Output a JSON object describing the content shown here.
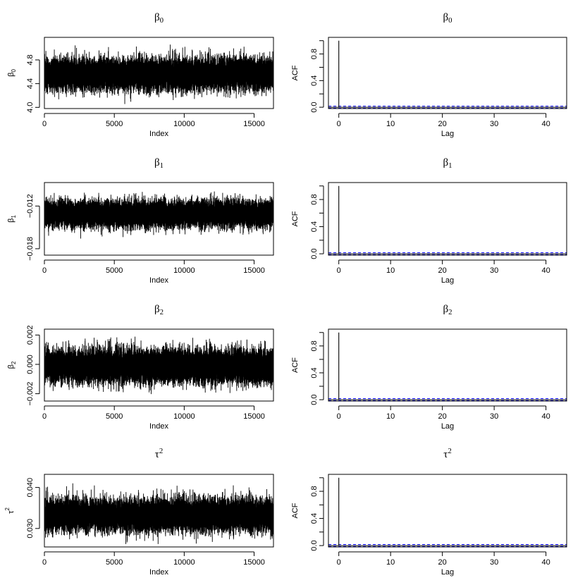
{
  "chart_data": [
    {
      "type": "line",
      "panel": "trace",
      "title": "β0",
      "title_base": "β",
      "title_sub": "0",
      "xlabel": "Index",
      "ylabel_base": "β",
      "ylabel_sub": "0",
      "xlim": [
        0,
        16384
      ],
      "ylim": [
        3.98,
        5.18
      ],
      "xticks": [
        0,
        5000,
        10000,
        15000
      ],
      "yticks": [
        4.0,
        4.4,
        4.8
      ],
      "ytick_labels": [
        "4.0",
        "4.4",
        "4.8"
      ],
      "series": [
        {
          "center": 4.56,
          "sd": 0.13,
          "min": 3.98,
          "max": 5.15,
          "n_samples": 16384,
          "color": "#000000"
        }
      ]
    },
    {
      "type": "bar",
      "panel": "acf",
      "title": "β0",
      "title_base": "β",
      "title_sub": "0",
      "xlabel": "Lag",
      "ylabel": "ACF",
      "xlim": [
        -2,
        44
      ],
      "ylim": [
        -0.02,
        1.05
      ],
      "xticks": [
        0,
        10,
        20,
        30,
        40
      ],
      "yticks": [
        0.0,
        0.2,
        0.4,
        0.6,
        0.8,
        1.0
      ],
      "ytick_labels": [
        "0.0",
        "",
        "0.4",
        "",
        "0.8",
        ""
      ],
      "lags": [
        0,
        1,
        2,
        3,
        4,
        5,
        6,
        7,
        8,
        9,
        10,
        11,
        12,
        13,
        14,
        15,
        16,
        17,
        18,
        19,
        20,
        21,
        22,
        23,
        24,
        25,
        26,
        27,
        28,
        29,
        30,
        31,
        32,
        33,
        34,
        35,
        36,
        37,
        38,
        39,
        40,
        41,
        42,
        43
      ],
      "values": [
        1.0,
        0.003,
        -0.002,
        0.004,
        -0.003,
        0.002,
        -0.004,
        0.003,
        0.001,
        -0.002,
        0.003,
        -0.001,
        0.002,
        -0.003,
        0.004,
        -0.002,
        0.001,
        0.003,
        -0.004,
        0.002,
        -0.001,
        0.003,
        -0.002,
        0.001,
        0.004,
        -0.003,
        0.002,
        -0.001,
        0.003,
        -0.002,
        0.001,
        -0.003,
        0.002,
        0.004,
        -0.002,
        0.001,
        -0.003,
        0.002,
        -0.001,
        0.003,
        -0.002,
        0.001,
        0.002,
        -0.003
      ],
      "conf_bound": 0.0153,
      "conf_color": "#0000ff"
    },
    {
      "type": "line",
      "panel": "trace",
      "title": "β1",
      "title_base": "β",
      "title_sub": "1",
      "xlabel": "Index",
      "ylabel_base": "β",
      "ylabel_sub": "1",
      "xlim": [
        0,
        16384
      ],
      "ylim": [
        -0.0189,
        -0.0087
      ],
      "xticks": [
        0,
        5000,
        10000,
        15000
      ],
      "yticks": [
        -0.018,
        -0.012
      ],
      "ytick_labels": [
        "−0.018",
        "−0.012"
      ],
      "series": [
        {
          "center": -0.0131,
          "sd": 0.0009,
          "min": -0.0183,
          "max": -0.0089,
          "n_samples": 16384,
          "color": "#000000"
        }
      ]
    },
    {
      "type": "bar",
      "panel": "acf",
      "title": "β1",
      "title_base": "β",
      "title_sub": "1",
      "xlabel": "Lag",
      "ylabel": "ACF",
      "xlim": [
        -2,
        44
      ],
      "ylim": [
        -0.02,
        1.05
      ],
      "xticks": [
        0,
        10,
        20,
        30,
        40
      ],
      "yticks": [
        0.0,
        0.2,
        0.4,
        0.6,
        0.8,
        1.0
      ],
      "ytick_labels": [
        "0.0",
        "",
        "0.4",
        "",
        "0.8",
        ""
      ],
      "lags": [
        0,
        1,
        2,
        3,
        4,
        5,
        6,
        7,
        8,
        9,
        10,
        11,
        12,
        13,
        14,
        15,
        16,
        17,
        18,
        19,
        20,
        21,
        22,
        23,
        24,
        25,
        26,
        27,
        28,
        29,
        30,
        31,
        32,
        33,
        34,
        35,
        36,
        37,
        38,
        39,
        40,
        41,
        42,
        43
      ],
      "values": [
        1.0,
        -0.002,
        0.003,
        0.001,
        -0.004,
        0.002,
        0.003,
        -0.001,
        -0.003,
        0.002,
        0.001,
        -0.002,
        0.004,
        -0.001,
        0.002,
        0.003,
        -0.003,
        0.001,
        0.002,
        -0.002,
        0.003,
        0.001,
        -0.004,
        0.002,
        -0.001,
        0.003,
        0.002,
        -0.002,
        0.001,
        -0.003,
        0.004,
        0.002,
        -0.001,
        -0.002,
        0.003,
        0.001,
        0.002,
        -0.003,
        0.001,
        0.002,
        -0.001,
        0.003,
        -0.002,
        0.001
      ],
      "conf_bound": 0.0153,
      "conf_color": "#0000ff"
    },
    {
      "type": "line",
      "panel": "trace",
      "title": "β2",
      "title_base": "β",
      "title_sub": "2",
      "xlabel": "Index",
      "ylabel_base": "β",
      "ylabel_sub": "2",
      "xlim": [
        0,
        16384
      ],
      "ylim": [
        -0.0025,
        0.0024
      ],
      "xticks": [
        0,
        5000,
        10000,
        15000
      ],
      "yticks": [
        -0.002,
        0.0,
        0.002
      ],
      "ytick_labels": [
        "−0.002",
        "0.000",
        "0.002"
      ],
      "series": [
        {
          "center": -0.0001,
          "sd": 0.00055,
          "min": -0.0023,
          "max": 0.0021,
          "n_samples": 16384,
          "color": "#000000"
        }
      ]
    },
    {
      "type": "bar",
      "panel": "acf",
      "title": "β2",
      "title_base": "β",
      "title_sub": "2",
      "xlabel": "Lag",
      "ylabel": "ACF",
      "xlim": [
        -2,
        44
      ],
      "ylim": [
        -0.02,
        1.05
      ],
      "xticks": [
        0,
        10,
        20,
        30,
        40
      ],
      "yticks": [
        0.0,
        0.2,
        0.4,
        0.6,
        0.8,
        1.0
      ],
      "ytick_labels": [
        "0.0",
        "",
        "0.4",
        "",
        "0.8",
        ""
      ],
      "lags": [
        0,
        1,
        2,
        3,
        4,
        5,
        6,
        7,
        8,
        9,
        10,
        11,
        12,
        13,
        14,
        15,
        16,
        17,
        18,
        19,
        20,
        21,
        22,
        23,
        24,
        25,
        26,
        27,
        28,
        29,
        30,
        31,
        32,
        33,
        34,
        35,
        36,
        37,
        38,
        39,
        40,
        41,
        42,
        43
      ],
      "values": [
        1.0,
        0.004,
        -0.001,
        -0.003,
        0.002,
        0.001,
        -0.002,
        0.003,
        -0.004,
        0.001,
        0.002,
        0.003,
        -0.002,
        0.001,
        -0.003,
        0.002,
        0.004,
        -0.001,
        0.001,
        -0.002,
        0.002,
        -0.003,
        0.001,
        0.003,
        -0.002,
        0.002,
        -0.001,
        0.004,
        -0.003,
        0.001,
        0.002,
        -0.002,
        0.003,
        -0.001,
        0.001,
        0.002,
        -0.004,
        0.003,
        0.001,
        -0.002,
        0.002,
        -0.001,
        0.003,
        0.001
      ],
      "conf_bound": 0.0153,
      "conf_color": "#0000ff"
    },
    {
      "type": "line",
      "panel": "trace",
      "title": "τ2",
      "title_base": "τ",
      "title_sup": "2",
      "xlabel": "Index",
      "ylabel_base": "τ",
      "ylabel_sup": "2",
      "xlim": [
        0,
        16384
      ],
      "ylim": [
        0.0255,
        0.0432
      ],
      "xticks": [
        0,
        5000,
        10000,
        15000
      ],
      "yticks": [
        0.03,
        0.04
      ],
      "ytick_labels": [
        "0.030",
        "0.040"
      ],
      "series": [
        {
          "center": 0.0333,
          "sd": 0.0019,
          "min": 0.0262,
          "max": 0.0428,
          "n_samples": 16384,
          "color": "#000000"
        }
      ]
    },
    {
      "type": "bar",
      "panel": "acf",
      "title": "τ2",
      "title_base": "τ",
      "title_sup": "2",
      "xlabel": "Lag",
      "ylabel": "ACF",
      "xlim": [
        -2,
        44
      ],
      "ylim": [
        -0.02,
        1.05
      ],
      "xticks": [
        0,
        10,
        20,
        30,
        40
      ],
      "yticks": [
        0.0,
        0.2,
        0.4,
        0.6,
        0.8,
        1.0
      ],
      "ytick_labels": [
        "0.0",
        "",
        "0.4",
        "",
        "0.8",
        ""
      ],
      "lags": [
        0,
        1,
        2,
        3,
        4,
        5,
        6,
        7,
        8,
        9,
        10,
        11,
        12,
        13,
        14,
        15,
        16,
        17,
        18,
        19,
        20,
        21,
        22,
        23,
        24,
        25,
        26,
        27,
        28,
        29,
        30,
        31,
        32,
        33,
        34,
        35,
        36,
        37,
        38,
        39,
        40,
        41,
        42,
        43
      ],
      "values": [
        1.0,
        0.002,
        0.003,
        -0.002,
        0.001,
        -0.004,
        0.002,
        0.001,
        0.003,
        -0.002,
        -0.001,
        0.004,
        0.001,
        -0.003,
        0.002,
        -0.001,
        0.003,
        0.002,
        -0.002,
        0.001,
        -0.003,
        0.004,
        -0.001,
        0.002,
        0.001,
        -0.002,
        0.003,
        -0.001,
        0.002,
        -0.004,
        0.001,
        0.003,
        -0.002,
        0.002,
        -0.001,
        0.001,
        0.003,
        -0.002,
        0.002,
        0.001,
        -0.003,
        0.002,
        -0.001,
        0.002
      ],
      "conf_bound": 0.0153,
      "conf_color": "#0000ff"
    }
  ]
}
